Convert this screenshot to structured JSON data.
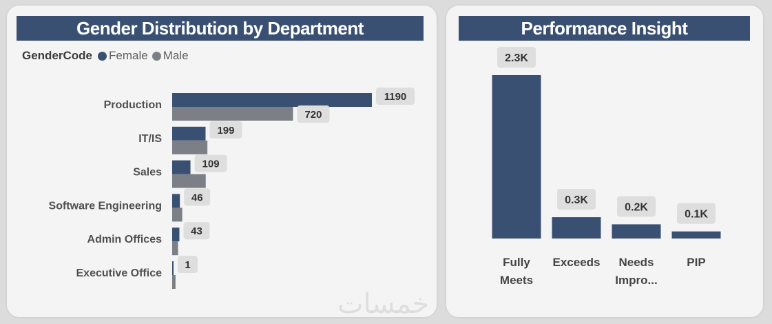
{
  "left_panel": {
    "title": "Gender Distribution by Department",
    "legend": {
      "title": "GenderCode",
      "items": [
        {
          "label": "Female",
          "color": "#3a5073"
        },
        {
          "label": "Male",
          "color": "#7d7f87"
        }
      ]
    }
  },
  "right_panel": {
    "title": "Performance Insight"
  },
  "watermark": "خمسات",
  "chart_data": [
    {
      "type": "bar",
      "orientation": "horizontal",
      "title": "Gender Distribution by Department",
      "legend_title": "GenderCode",
      "categories": [
        "Production",
        "IT/IS",
        "Sales",
        "Software Engineering",
        "Admin Offices",
        "Executive Office"
      ],
      "series": [
        {
          "name": "Female",
          "color": "#3a5073",
          "values": [
            1190,
            199,
            109,
            46,
            43,
            1
          ]
        },
        {
          "name": "Male",
          "color": "#7d7f87",
          "values": [
            720,
            210,
            200,
            60,
            35,
            20
          ]
        }
      ],
      "shown_labels": {
        "Female": [
          "1190",
          "199",
          "109",
          "46",
          "43",
          "1"
        ],
        "Male": [
          "720",
          null,
          null,
          null,
          null,
          null
        ]
      },
      "xlim": [
        0,
        1500
      ],
      "grid": false,
      "legend_position": "top-left"
    },
    {
      "type": "bar",
      "title": "Performance Insight",
      "categories": [
        "Fully Meets",
        "Exceeds",
        "Needs Impro...",
        "PIP"
      ],
      "values": [
        2300,
        300,
        200,
        100
      ],
      "value_labels": [
        "2.3K",
        "0.3K",
        "0.2K",
        "0.1K"
      ],
      "color": "#3a5073",
      "ylim": [
        0,
        2300
      ],
      "grid": false
    }
  ]
}
